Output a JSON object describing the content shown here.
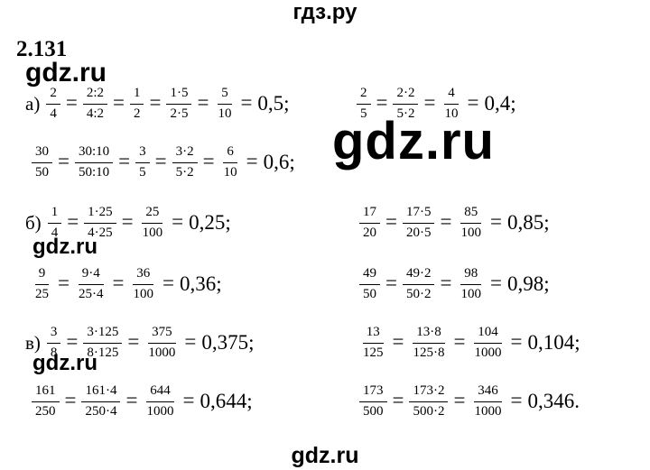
{
  "problem": {
    "number": "2.131"
  },
  "watermarks": {
    "top": "гдз.ру",
    "small": "gdz.ru",
    "large": "gdz.ru",
    "bottom": "gdz.ru"
  },
  "rows": [
    {
      "label": "а)",
      "terms": [
        {
          "n": "2",
          "d": "4"
        },
        {
          "n": "2:2",
          "d": "4:2"
        },
        {
          "n": "1",
          "d": "2"
        },
        {
          "n": "1·5",
          "d": "2·5"
        },
        {
          "n": "5",
          "d": "10"
        },
        {
          "t": "0,5;"
        }
      ]
    },
    {
      "label": "",
      "terms": [
        {
          "n": "2",
          "d": "5"
        },
        {
          "n": "2·2",
          "d": "5·2"
        },
        {
          "n": "4",
          "d": "10"
        },
        {
          "t": "0,4;"
        }
      ]
    },
    {
      "label": "",
      "terms": [
        {
          "n": "30",
          "d": "50"
        },
        {
          "n": "30:10",
          "d": "50:10"
        },
        {
          "n": "3",
          "d": "5"
        },
        {
          "n": "3·2",
          "d": "5·2"
        },
        {
          "n": "6",
          "d": "10"
        },
        {
          "t": "0,6;"
        }
      ]
    },
    {
      "label": "б)",
      "terms": [
        {
          "n": "1",
          "d": "4"
        },
        {
          "n": "1·25",
          "d": "4·25"
        },
        {
          "n": "25",
          "d": "100"
        },
        {
          "t": "0,25;"
        }
      ]
    },
    {
      "label": "",
      "terms": [
        {
          "n": "17",
          "d": "20"
        },
        {
          "n": "17·5",
          "d": "20·5"
        },
        {
          "n": "85",
          "d": "100"
        },
        {
          "t": "0,85;"
        }
      ]
    },
    {
      "label": "",
      "terms": [
        {
          "n": "9",
          "d": "25"
        },
        {
          "n": "9·4",
          "d": "25·4"
        },
        {
          "n": "36",
          "d": "100"
        },
        {
          "t": "0,36;"
        }
      ]
    },
    {
      "label": "",
      "terms": [
        {
          "n": "49",
          "d": "50"
        },
        {
          "n": "49·2",
          "d": "50·2"
        },
        {
          "n": "98",
          "d": "100"
        },
        {
          "t": "0,98;"
        }
      ]
    },
    {
      "label": "в)",
      "terms": [
        {
          "n": "3",
          "d": "8"
        },
        {
          "n": "3·125",
          "d": "8·125"
        },
        {
          "n": "375",
          "d": "1000"
        },
        {
          "t": "0,375;"
        }
      ]
    },
    {
      "label": "",
      "terms": [
        {
          "n": "13",
          "d": "125"
        },
        {
          "n": "13·8",
          "d": "125·8"
        },
        {
          "n": "104",
          "d": "1000"
        },
        {
          "t": "0,104;"
        }
      ]
    },
    {
      "label": "",
      "terms": [
        {
          "n": "161",
          "d": "250"
        },
        {
          "n": "161·4",
          "d": "250·4"
        },
        {
          "n": "644",
          "d": "1000"
        },
        {
          "t": "0,644;"
        }
      ]
    },
    {
      "label": "",
      "terms": [
        {
          "n": "173",
          "d": "500"
        },
        {
          "n": "173·2",
          "d": "500·2"
        },
        {
          "n": "346",
          "d": "1000"
        },
        {
          "t": "0,346."
        }
      ]
    }
  ]
}
